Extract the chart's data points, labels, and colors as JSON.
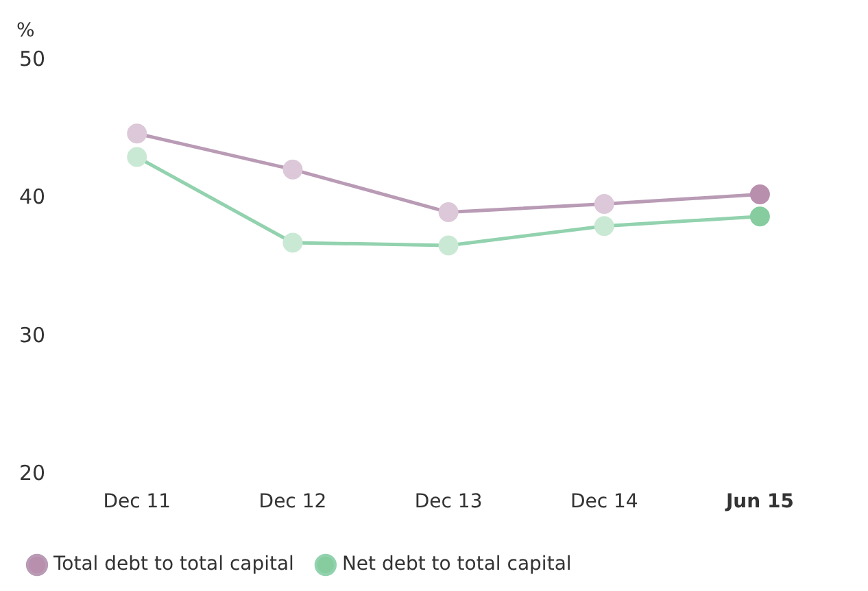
{
  "chart_data": {
    "type": "line",
    "ylabel": "%",
    "categories": [
      "Dec 11",
      "Dec 12",
      "Dec 13",
      "Dec 14",
      "Jun 15"
    ],
    "series": [
      {
        "name": "Total debt to total capital",
        "color": "#b99bb5",
        "colors": [
          "#dcc8d9",
          "#dcc8d9",
          "#dcc8d9",
          "#dcc8d9",
          "#b98fae"
        ],
        "values": [
          44.7,
          42.1,
          39.0,
          39.6,
          40.3
        ]
      },
      {
        "name": "Net debt to total capital",
        "color": "#92d2ae",
        "colors": [
          "#c9e9d5",
          "#c9e9d5",
          "#c9e9d5",
          "#c9e9d5",
          "#86cc9f"
        ],
        "values": [
          43.0,
          36.8,
          36.6,
          38.0,
          38.7
        ]
      }
    ],
    "ylim": [
      20,
      50
    ],
    "yticks": [
      20,
      30,
      40,
      50
    ],
    "grid": false,
    "legend": "bottom left",
    "marker": "circle",
    "line_style": "solid"
  }
}
